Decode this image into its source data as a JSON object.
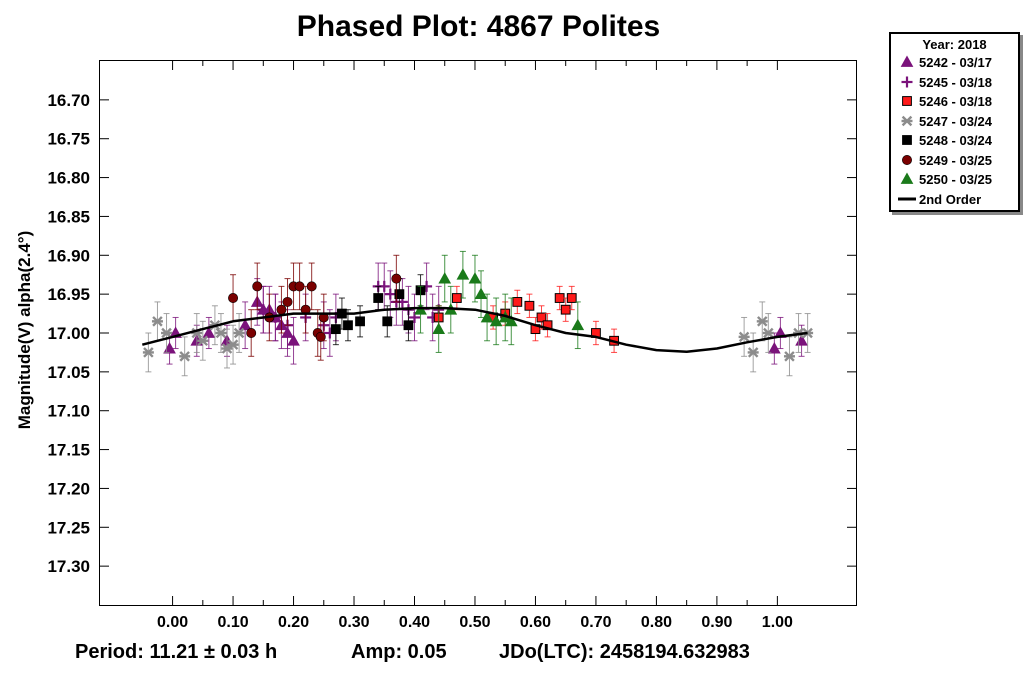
{
  "title": "Phased Plot: 4867 Polites",
  "footer": {
    "period": "Period: 11.21 ± 0.03 h",
    "amp": "Amp: 0.05",
    "jdo": "JDo(LTC): 2458194.632983"
  },
  "legend": {
    "title": "Year: 2018",
    "entries": [
      {
        "label": "5242 - 03/17",
        "marker": "triangle",
        "color": "#7b137b"
      },
      {
        "label": "5245 - 03/18",
        "marker": "plus",
        "color": "#7b137b"
      },
      {
        "label": "5246 - 03/18",
        "marker": "square",
        "color": "#ff1a1a"
      },
      {
        "label": "5247 - 03/24",
        "marker": "asterisk",
        "color": "#8c8c8c"
      },
      {
        "label": "5248 - 03/24",
        "marker": "square",
        "color": "#000000"
      },
      {
        "label": "5249 - 03/25",
        "marker": "circle",
        "color": "#7a0000"
      },
      {
        "label": "5250 - 03/25",
        "marker": "triangle",
        "color": "#1a7a1a"
      },
      {
        "label": "2nd Order",
        "marker": "line",
        "color": "#000000"
      }
    ]
  },
  "chart_data": {
    "type": "scatter",
    "title": "Phased Plot: 4867 Polites",
    "xlabel": "",
    "ylabel": "Magnitude(V) alpha(2.4°)",
    "xlim": [
      -0.12,
      1.13
    ],
    "ylim": [
      16.65,
      17.35
    ],
    "y_inverted": true,
    "grid": false,
    "legend_position": "outside-top-right",
    "x_ticks": [
      "0.00",
      "0.10",
      "0.20",
      "0.30",
      "0.40",
      "0.50",
      "0.60",
      "0.70",
      "0.80",
      "0.90",
      "1.00"
    ],
    "y_ticks": [
      "16.70",
      "16.75",
      "16.80",
      "16.85",
      "16.90",
      "16.95",
      "17.00",
      "17.05",
      "17.10",
      "17.15",
      "17.20",
      "17.25",
      "17.30"
    ],
    "series": [
      {
        "name": "5242 - 03/17",
        "marker": "triangle",
        "color": "#7b137b",
        "x": [
          -0.005,
          0.005,
          0.04,
          0.06,
          0.09,
          0.12,
          0.14,
          0.15,
          0.16,
          0.17,
          0.18,
          0.19,
          0.2,
          0.995,
          1.005,
          1.04
        ],
        "y": [
          17.02,
          17.0,
          17.01,
          17.0,
          17.01,
          16.99,
          16.96,
          16.97,
          16.97,
          16.98,
          16.99,
          17.0,
          17.01,
          17.02,
          17.0,
          17.01
        ],
        "err": [
          0.02,
          0.02,
          0.02,
          0.02,
          0.02,
          0.03,
          0.03,
          0.03,
          0.03,
          0.03,
          0.03,
          0.03,
          0.03,
          0.02,
          0.02,
          0.02
        ]
      },
      {
        "name": "5245 - 03/18",
        "marker": "plus",
        "color": "#7b137b",
        "x": [
          0.15,
          0.17,
          0.19,
          0.22,
          0.25,
          0.26,
          0.27,
          0.34,
          0.35,
          0.36,
          0.37,
          0.38,
          0.39,
          0.4,
          0.42,
          0.43,
          0.44
        ],
        "y": [
          16.97,
          16.98,
          16.99,
          16.98,
          16.99,
          17.0,
          16.98,
          16.94,
          16.94,
          16.95,
          16.96,
          16.96,
          16.97,
          16.98,
          16.94,
          16.98,
          16.97
        ],
        "err": [
          0.03,
          0.03,
          0.03,
          0.03,
          0.03,
          0.03,
          0.03,
          0.03,
          0.03,
          0.03,
          0.03,
          0.03,
          0.03,
          0.03,
          0.03,
          0.03,
          0.03
        ]
      },
      {
        "name": "5246 - 03/18",
        "marker": "square",
        "color": "#ff1a1a",
        "x": [
          0.44,
          0.47,
          0.53,
          0.55,
          0.57,
          0.59,
          0.6,
          0.61,
          0.62,
          0.64,
          0.65,
          0.66,
          0.7,
          0.73
        ],
        "y": [
          16.98,
          16.955,
          16.98,
          16.975,
          16.96,
          16.965,
          16.995,
          16.98,
          16.99,
          16.955,
          16.97,
          16.955,
          17.0,
          17.01
        ],
        "err": [
          0.015,
          0.015,
          0.015,
          0.015,
          0.015,
          0.015,
          0.015,
          0.015,
          0.015,
          0.015,
          0.015,
          0.015,
          0.015,
          0.015
        ]
      },
      {
        "name": "5247 - 03/24",
        "marker": "asterisk",
        "color": "#8c8c8c",
        "x": [
          -0.04,
          -0.025,
          -0.01,
          0.02,
          0.04,
          0.05,
          0.07,
          0.08,
          0.09,
          0.1,
          0.11,
          0.945,
          0.96,
          0.975,
          0.985,
          1.02,
          1.035,
          1.05
        ],
        "y": [
          17.025,
          16.985,
          17.0,
          17.03,
          17.0,
          17.01,
          16.99,
          17.0,
          17.02,
          17.015,
          17.0,
          17.005,
          17.025,
          16.985,
          17.0,
          17.03,
          17.0,
          17.0
        ],
        "err": [
          0.025,
          0.025,
          0.025,
          0.025,
          0.025,
          0.025,
          0.025,
          0.025,
          0.025,
          0.025,
          0.025,
          0.025,
          0.025,
          0.025,
          0.025,
          0.025,
          0.025,
          0.025
        ]
      },
      {
        "name": "5248 - 03/24",
        "marker": "square",
        "color": "#000000",
        "x": [
          0.27,
          0.28,
          0.29,
          0.31,
          0.34,
          0.355,
          0.375,
          0.39,
          0.41
        ],
        "y": [
          16.995,
          16.975,
          16.99,
          16.985,
          16.955,
          16.985,
          16.95,
          16.99,
          16.945
        ],
        "err": [
          0.02,
          0.02,
          0.02,
          0.02,
          0.015,
          0.02,
          0.02,
          0.02,
          0.02
        ]
      },
      {
        "name": "5249 - 03/25",
        "marker": "circle",
        "color": "#7a0000",
        "x": [
          0.1,
          0.13,
          0.14,
          0.16,
          0.18,
          0.19,
          0.2,
          0.21,
          0.22,
          0.23,
          0.24,
          0.245,
          0.25,
          0.37
        ],
        "y": [
          16.955,
          17.0,
          16.94,
          16.98,
          16.97,
          16.96,
          16.94,
          16.94,
          16.97,
          16.94,
          17.0,
          17.005,
          16.98,
          16.93
        ],
        "err": [
          0.03,
          0.03,
          0.03,
          0.03,
          0.03,
          0.03,
          0.03,
          0.03,
          0.03,
          0.03,
          0.03,
          0.03,
          0.03,
          0.03
        ]
      },
      {
        "name": "5250 - 03/25",
        "marker": "triangle",
        "color": "#1a7a1a",
        "x": [
          0.41,
          0.44,
          0.45,
          0.46,
          0.48,
          0.5,
          0.51,
          0.52,
          0.535,
          0.55,
          0.56,
          0.67
        ],
        "y": [
          16.97,
          16.995,
          16.93,
          16.97,
          16.925,
          16.93,
          16.95,
          16.98,
          16.985,
          16.98,
          16.985,
          16.99
        ],
        "err": [
          0.03,
          0.03,
          0.03,
          0.03,
          0.03,
          0.03,
          0.03,
          0.03,
          0.03,
          0.03,
          0.03,
          0.03
        ]
      }
    ],
    "fit": {
      "name": "2nd Order",
      "x": [
        -0.05,
        0.0,
        0.05,
        0.1,
        0.15,
        0.2,
        0.25,
        0.3,
        0.35,
        0.4,
        0.45,
        0.5,
        0.55,
        0.6,
        0.65,
        0.7,
        0.75,
        0.8,
        0.85,
        0.9,
        0.95,
        1.0,
        1.05
      ],
      "y": [
        17.015,
        17.005,
        16.995,
        16.985,
        16.98,
        16.975,
        16.975,
        16.975,
        16.97,
        16.968,
        16.968,
        16.97,
        16.978,
        16.99,
        17.0,
        17.005,
        17.015,
        17.022,
        17.024,
        17.02,
        17.012,
        17.005,
        17.0
      ]
    }
  }
}
